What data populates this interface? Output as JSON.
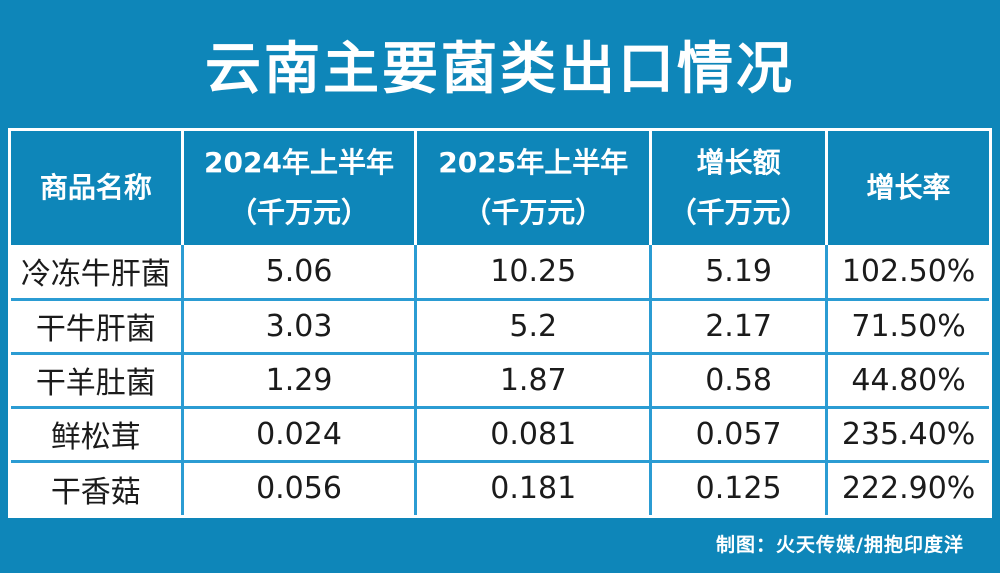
{
  "title": "云南主要菌类出口情况",
  "footer": {
    "credit": "制图：火天传媒/拥抱印度洋"
  },
  "colors": {
    "background_teal": "#0e86b9",
    "header_divider_white": "#ffffff",
    "cell_border_blue": "#2b9cd3",
    "cell_background": "#ffffff",
    "data_text": "#1b1b1b"
  },
  "table": {
    "col_widths": [
      "17.5%",
      "23.9%",
      "24.0%",
      "18.0%",
      "16.6%"
    ],
    "headers": [
      {
        "line1": "商品名称",
        "line2": ""
      },
      {
        "line1": "2024年上半年",
        "line2": "（千万元）"
      },
      {
        "line1": "2025年上半年",
        "line2": "（千万元）"
      },
      {
        "line1": "增长额",
        "line2": "（千万元）"
      },
      {
        "line1": "增长率",
        "line2": ""
      }
    ],
    "rows": [
      [
        "冷冻牛肝菌",
        "5.06",
        "10.25",
        "5.19",
        "102.50%"
      ],
      [
        "干牛肝菌",
        "3.03",
        "5.2",
        "2.17",
        "71.50%"
      ],
      [
        "干羊肚菌",
        "1.29",
        "1.87",
        "0.58",
        "44.80%"
      ],
      [
        "鲜松茸",
        "0.024",
        "0.081",
        "0.057",
        "235.40%"
      ],
      [
        "干香菇",
        "0.056",
        "0.181",
        "0.125",
        "222.90%"
      ]
    ]
  },
  "chart_data": {
    "type": "table",
    "title": "云南主要菌类出口情况",
    "columns": [
      "商品名称",
      "2024年上半年（千万元）",
      "2025年上半年（千万元）",
      "增长额（千万元）",
      "增长率"
    ],
    "rows": [
      {
        "商品名称": "冷冻牛肝菌",
        "2024年上半年_千万元": 5.06,
        "2025年上半年_千万元": 10.25,
        "增长额_千万元": 5.19,
        "增长率": "102.50%"
      },
      {
        "商品名称": "干牛肝菌",
        "2024年上半年_千万元": 3.03,
        "2025年上半年_千万元": 5.2,
        "增长额_千万元": 2.17,
        "增长率": "71.50%"
      },
      {
        "商品名称": "干羊肚菌",
        "2024年上半年_千万元": 1.29,
        "2025年上半年_千万元": 1.87,
        "增长额_千万元": 0.58,
        "增长率": "44.80%"
      },
      {
        "商品名称": "鲜松茸",
        "2024年上半年_千万元": 0.024,
        "2025年上半年_千万元": 0.081,
        "增长额_千万元": 0.057,
        "增长率": "235.40%"
      },
      {
        "商品名称": "干香菇",
        "2024年上半年_千万元": 0.056,
        "2025年上半年_千万元": 0.181,
        "增长额_千万元": 0.125,
        "增长率": "222.90%"
      }
    ],
    "source_credit": "制图：火天传媒/拥抱印度洋"
  }
}
